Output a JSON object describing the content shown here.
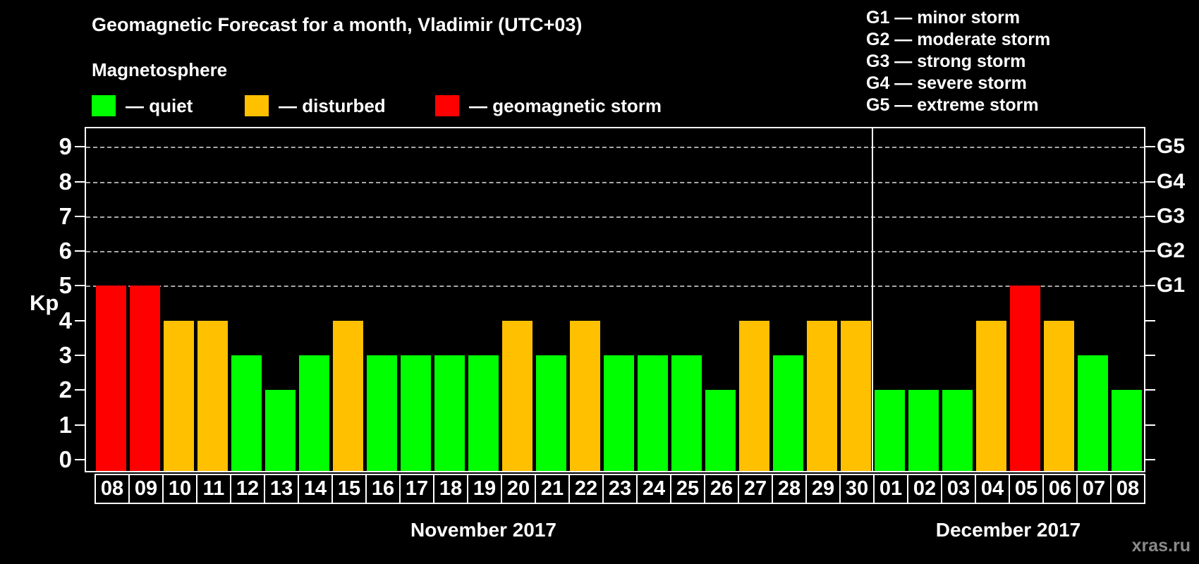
{
  "title": "Geomagnetic Forecast for a month, Vladimir (UTC+03)",
  "subtitle": "Magnetosphere",
  "watermark": "xras.ru",
  "colors": {
    "quiet": "#00ff00",
    "disturbed": "#ffc000",
    "storm": "#ff0000",
    "background": "#000000",
    "text": "#ffffff",
    "gridline": "#a8a8a8",
    "watermark": "#8a8a8a"
  },
  "magnetosphere_legend": [
    {
      "status": "quiet",
      "label": "— quiet"
    },
    {
      "status": "disturbed",
      "label": "— disturbed"
    },
    {
      "status": "storm",
      "label": "— geomagnetic storm"
    }
  ],
  "storm_scale_legend": [
    "G1 — minor storm",
    "G2 — moderate storm",
    "G3 — strong storm",
    "G4 — severe storm",
    "G5 — extreme storm"
  ],
  "chart_data": {
    "type": "bar",
    "ylabel": "Kp",
    "ylim": [
      0,
      9
    ],
    "y_ticks_left": [
      0,
      1,
      2,
      3,
      4,
      5,
      6,
      7,
      8,
      9
    ],
    "right_axis": [
      {
        "kp": 5,
        "label": "G1"
      },
      {
        "kp": 6,
        "label": "G2"
      },
      {
        "kp": 7,
        "label": "G3"
      },
      {
        "kp": 8,
        "label": "G4"
      },
      {
        "kp": 9,
        "label": "G5"
      }
    ],
    "gridlines_at_kp": [
      5,
      6,
      7,
      8,
      9
    ],
    "grid": "dashed horizontal lines at storm levels only",
    "legend_position": "top",
    "months": [
      {
        "label": "November 2017",
        "start_index": 0,
        "day_count": 23
      },
      {
        "label": "December 2017",
        "start_index": 23,
        "day_count": 8
      }
    ],
    "days": [
      {
        "date": "08",
        "kp": 5,
        "status": "storm"
      },
      {
        "date": "09",
        "kp": 5,
        "status": "storm"
      },
      {
        "date": "10",
        "kp": 4,
        "status": "disturbed"
      },
      {
        "date": "11",
        "kp": 4,
        "status": "disturbed"
      },
      {
        "date": "12",
        "kp": 3,
        "status": "quiet"
      },
      {
        "date": "13",
        "kp": 2,
        "status": "quiet"
      },
      {
        "date": "14",
        "kp": 3,
        "status": "quiet"
      },
      {
        "date": "15",
        "kp": 4,
        "status": "disturbed"
      },
      {
        "date": "16",
        "kp": 3,
        "status": "quiet"
      },
      {
        "date": "17",
        "kp": 3,
        "status": "quiet"
      },
      {
        "date": "18",
        "kp": 3,
        "status": "quiet"
      },
      {
        "date": "19",
        "kp": 3,
        "status": "quiet"
      },
      {
        "date": "20",
        "kp": 4,
        "status": "disturbed"
      },
      {
        "date": "21",
        "kp": 3,
        "status": "quiet"
      },
      {
        "date": "22",
        "kp": 4,
        "status": "disturbed"
      },
      {
        "date": "23",
        "kp": 3,
        "status": "quiet"
      },
      {
        "date": "24",
        "kp": 3,
        "status": "quiet"
      },
      {
        "date": "25",
        "kp": 3,
        "status": "quiet"
      },
      {
        "date": "26",
        "kp": 2,
        "status": "quiet"
      },
      {
        "date": "27",
        "kp": 4,
        "status": "disturbed"
      },
      {
        "date": "28",
        "kp": 3,
        "status": "quiet"
      },
      {
        "date": "29",
        "kp": 4,
        "status": "disturbed"
      },
      {
        "date": "30",
        "kp": 4,
        "status": "disturbed"
      },
      {
        "date": "01",
        "kp": 2,
        "status": "quiet"
      },
      {
        "date": "02",
        "kp": 2,
        "status": "quiet"
      },
      {
        "date": "03",
        "kp": 2,
        "status": "quiet"
      },
      {
        "date": "04",
        "kp": 4,
        "status": "disturbed"
      },
      {
        "date": "05",
        "kp": 5,
        "status": "storm"
      },
      {
        "date": "06",
        "kp": 4,
        "status": "disturbed"
      },
      {
        "date": "07",
        "kp": 3,
        "status": "quiet"
      },
      {
        "date": "08",
        "kp": 2,
        "status": "quiet"
      }
    ]
  }
}
